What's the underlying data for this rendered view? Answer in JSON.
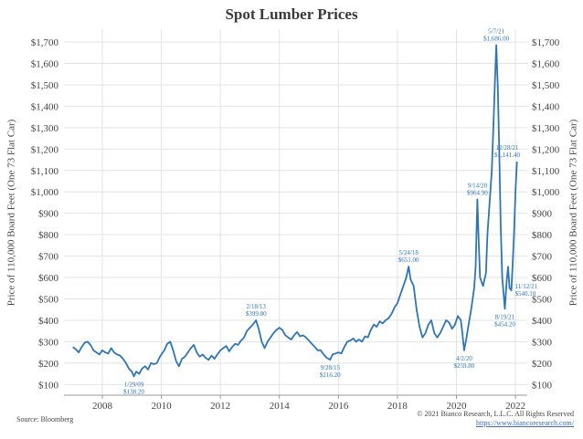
{
  "chart_data": {
    "type": "line",
    "title": "Spot Lumber Prices",
    "ylabel": "Price of 110,000 Board Feet (One 73 Flat Car)",
    "ylim": [
      50,
      1760
    ],
    "xlim": [
      2006.7,
      2022.4
    ],
    "y_ticks": [
      100,
      200,
      300,
      400,
      500,
      600,
      700,
      800,
      900,
      1000,
      1100,
      1200,
      1300,
      1400,
      1500,
      1600,
      1700
    ],
    "y_tick_labels": [
      "$100",
      "$200",
      "$300",
      "$400",
      "$500",
      "$600",
      "$700",
      "$800",
      "$900",
      "$1,000",
      "$1,100",
      "$1,200",
      "$1,300",
      "$1,400",
      "$1,500",
      "$1,600",
      "$1,700"
    ],
    "x_ticks": [
      2008,
      2010,
      2012,
      2014,
      2016,
      2018,
      2020,
      2022
    ],
    "x_tick_labels": [
      "2008",
      "2010",
      "2012",
      "2014",
      "2016",
      "2018",
      "2020",
      "2022"
    ],
    "color": "#2e75b6",
    "grid": true,
    "series": [
      {
        "points": [
          [
            2007.0,
            275
          ],
          [
            2007.1,
            265
          ],
          [
            2007.2,
            250
          ],
          [
            2007.3,
            275
          ],
          [
            2007.4,
            295
          ],
          [
            2007.5,
            300
          ],
          [
            2007.6,
            285
          ],
          [
            2007.7,
            260
          ],
          [
            2007.8,
            250
          ],
          [
            2007.9,
            240
          ],
          [
            2008.0,
            260
          ],
          [
            2008.1,
            250
          ],
          [
            2008.2,
            245
          ],
          [
            2008.3,
            270
          ],
          [
            2008.4,
            250
          ],
          [
            2008.5,
            240
          ],
          [
            2008.6,
            235
          ],
          [
            2008.7,
            220
          ],
          [
            2008.8,
            200
          ],
          [
            2008.9,
            175
          ],
          [
            2009.0,
            160
          ],
          [
            2009.07,
            138
          ],
          [
            2009.15,
            160
          ],
          [
            2009.25,
            150
          ],
          [
            2009.35,
            175
          ],
          [
            2009.45,
            185
          ],
          [
            2009.55,
            170
          ],
          [
            2009.65,
            200
          ],
          [
            2009.75,
            195
          ],
          [
            2009.85,
            200
          ],
          [
            2009.95,
            230
          ],
          [
            2010.1,
            260
          ],
          [
            2010.2,
            290
          ],
          [
            2010.3,
            300
          ],
          [
            2010.4,
            260
          ],
          [
            2010.5,
            210
          ],
          [
            2010.6,
            185
          ],
          [
            2010.7,
            220
          ],
          [
            2010.8,
            230
          ],
          [
            2010.9,
            250
          ],
          [
            2011.0,
            270
          ],
          [
            2011.1,
            285
          ],
          [
            2011.2,
            250
          ],
          [
            2011.3,
            230
          ],
          [
            2011.4,
            240
          ],
          [
            2011.5,
            225
          ],
          [
            2011.6,
            215
          ],
          [
            2011.7,
            235
          ],
          [
            2011.8,
            220
          ],
          [
            2011.9,
            240
          ],
          [
            2012.0,
            260
          ],
          [
            2012.1,
            270
          ],
          [
            2012.2,
            280
          ],
          [
            2012.3,
            255
          ],
          [
            2012.4,
            275
          ],
          [
            2012.5,
            290
          ],
          [
            2012.6,
            285
          ],
          [
            2012.7,
            305
          ],
          [
            2012.8,
            320
          ],
          [
            2012.9,
            350
          ],
          [
            2013.0,
            365
          ],
          [
            2013.1,
            380
          ],
          [
            2013.21,
            400
          ],
          [
            2013.3,
            360
          ],
          [
            2013.4,
            300
          ],
          [
            2013.5,
            270
          ],
          [
            2013.6,
            300
          ],
          [
            2013.7,
            320
          ],
          [
            2013.8,
            340
          ],
          [
            2013.9,
            355
          ],
          [
            2014.0,
            365
          ],
          [
            2014.1,
            355
          ],
          [
            2014.2,
            330
          ],
          [
            2014.3,
            320
          ],
          [
            2014.4,
            310
          ],
          [
            2014.5,
            330
          ],
          [
            2014.6,
            345
          ],
          [
            2014.7,
            325
          ],
          [
            2014.8,
            330
          ],
          [
            2014.9,
            320
          ],
          [
            2015.0,
            305
          ],
          [
            2015.1,
            290
          ],
          [
            2015.2,
            275
          ],
          [
            2015.3,
            260
          ],
          [
            2015.4,
            260
          ],
          [
            2015.5,
            240
          ],
          [
            2015.6,
            225
          ],
          [
            2015.72,
            216
          ],
          [
            2015.8,
            240
          ],
          [
            2015.9,
            245
          ],
          [
            2016.0,
            250
          ],
          [
            2016.1,
            245
          ],
          [
            2016.2,
            275
          ],
          [
            2016.3,
            300
          ],
          [
            2016.4,
            305
          ],
          [
            2016.5,
            315
          ],
          [
            2016.6,
            300
          ],
          [
            2016.7,
            310
          ],
          [
            2016.8,
            300
          ],
          [
            2016.9,
            325
          ],
          [
            2017.0,
            320
          ],
          [
            2017.1,
            355
          ],
          [
            2017.2,
            380
          ],
          [
            2017.3,
            370
          ],
          [
            2017.4,
            395
          ],
          [
            2017.5,
            385
          ],
          [
            2017.6,
            400
          ],
          [
            2017.7,
            410
          ],
          [
            2017.8,
            430
          ],
          [
            2017.9,
            460
          ],
          [
            2018.0,
            480
          ],
          [
            2018.1,
            520
          ],
          [
            2018.2,
            560
          ],
          [
            2018.3,
            600
          ],
          [
            2018.38,
            651
          ],
          [
            2018.45,
            590
          ],
          [
            2018.55,
            560
          ],
          [
            2018.65,
            450
          ],
          [
            2018.75,
            370
          ],
          [
            2018.85,
            320
          ],
          [
            2018.95,
            340
          ],
          [
            2019.05,
            380
          ],
          [
            2019.15,
            400
          ],
          [
            2019.25,
            340
          ],
          [
            2019.35,
            320
          ],
          [
            2019.45,
            340
          ],
          [
            2019.55,
            370
          ],
          [
            2019.65,
            400
          ],
          [
            2019.75,
            390
          ],
          [
            2019.85,
            360
          ],
          [
            2019.95,
            380
          ],
          [
            2020.05,
            420
          ],
          [
            2020.15,
            400
          ],
          [
            2020.2,
            340
          ],
          [
            2020.26,
            260
          ],
          [
            2020.33,
            310
          ],
          [
            2020.4,
            370
          ],
          [
            2020.5,
            450
          ],
          [
            2020.6,
            550
          ],
          [
            2020.65,
            650
          ],
          [
            2020.71,
            965
          ],
          [
            2020.75,
            790
          ],
          [
            2020.8,
            600
          ],
          [
            2020.9,
            560
          ],
          [
            2021.0,
            620
          ],
          [
            2021.05,
            800
          ],
          [
            2021.1,
            900
          ],
          [
            2021.15,
            1000
          ],
          [
            2021.2,
            1100
          ],
          [
            2021.25,
            1300
          ],
          [
            2021.3,
            1500
          ],
          [
            2021.35,
            1686
          ],
          [
            2021.4,
            1500
          ],
          [
            2021.45,
            1200
          ],
          [
            2021.5,
            850
          ],
          [
            2021.55,
            600
          ],
          [
            2021.6,
            520
          ],
          [
            2021.64,
            454
          ],
          [
            2021.7,
            580
          ],
          [
            2021.75,
            650
          ],
          [
            2021.8,
            550
          ],
          [
            2021.86,
            540
          ],
          [
            2021.9,
            650
          ],
          [
            2021.95,
            800
          ],
          [
            2022.0,
            1000
          ],
          [
            2022.05,
            1141
          ]
        ]
      }
    ],
    "annotations": [
      {
        "x": 2009.07,
        "y": 138,
        "date": "1/29/09",
        "value": "$138.20",
        "side": "below"
      },
      {
        "x": 2013.21,
        "y": 400,
        "date": "2/18/13",
        "value": "$399.80",
        "side": "above"
      },
      {
        "x": 2015.72,
        "y": 216,
        "date": "9/28/15",
        "value": "$216.20",
        "side": "below"
      },
      {
        "x": 2018.38,
        "y": 651,
        "date": "5/24/18",
        "value": "$651.00",
        "side": "above"
      },
      {
        "x": 2020.26,
        "y": 260,
        "date": "4/2/20",
        "value": "$259.80",
        "side": "below"
      },
      {
        "x": 2020.71,
        "y": 965,
        "date": "9/14/20",
        "value": "$964.90",
        "side": "above"
      },
      {
        "x": 2021.35,
        "y": 1686,
        "date": "5/7/21",
        "value": "$1,686.00",
        "side": "above"
      },
      {
        "x": 2021.64,
        "y": 454,
        "date": "8/19/21",
        "value": "$454.20",
        "side": "below"
      },
      {
        "x": 2021.86,
        "y": 540,
        "date": "11/12/21",
        "value": "$540.10",
        "side": "right"
      },
      {
        "x": 2022.05,
        "y": 1141,
        "date": "12/28/21",
        "value": "$1,141.40",
        "side": "above"
      }
    ]
  },
  "footer": {
    "source": "Source: Bloomberg",
    "copyright": "© 2021 Bianco Research, L.L.C. All Rights Reserved",
    "url": "https://www.biancoresearch.com/"
  }
}
